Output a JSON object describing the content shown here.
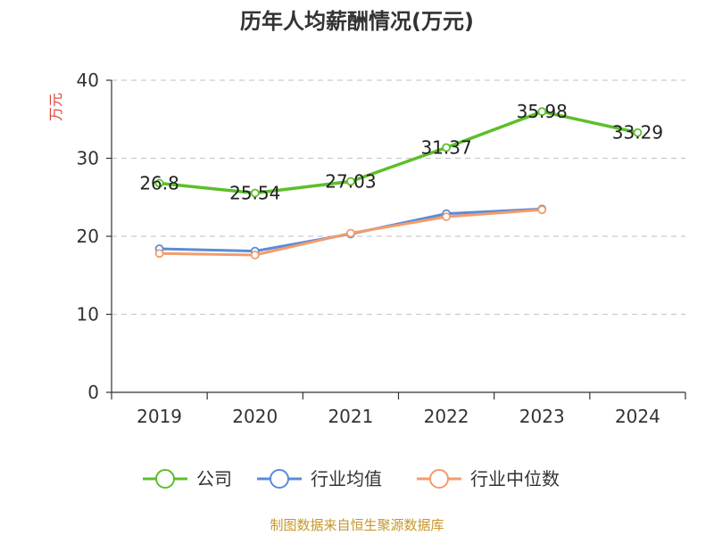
{
  "chart_data": {
    "type": "line",
    "title": "历年人均薪酬情况(万元)",
    "ylabel": "万元",
    "xlabel": "",
    "categories": [
      "2019",
      "2020",
      "2021",
      "2022",
      "2023",
      "2024"
    ],
    "ylim": [
      0,
      40
    ],
    "yticks": [
      0,
      10,
      20,
      30,
      40
    ],
    "grid": true,
    "legend_position": "bottom",
    "series": [
      {
        "name": "公司",
        "color": "#5cbf2a",
        "values": [
          26.8,
          25.54,
          27.03,
          31.37,
          35.98,
          33.29
        ],
        "labels": [
          "26.8",
          "25.54",
          "27.03",
          "31.37",
          "35.98",
          "33.29"
        ]
      },
      {
        "name": "行业均值",
        "color": "#5b8bd6",
        "values": [
          18.4,
          18.1,
          20.3,
          22.9,
          23.5,
          null
        ]
      },
      {
        "name": "行业中位数",
        "color": "#f39c6b",
        "values": [
          17.8,
          17.6,
          20.4,
          22.5,
          23.4,
          null
        ]
      }
    ],
    "source": "制图数据来自恒生聚源数据库"
  },
  "colors": {
    "axis": "#333333",
    "grid": "#cccccc",
    "ylabel": "#e0443a",
    "source": "#c8962a"
  }
}
